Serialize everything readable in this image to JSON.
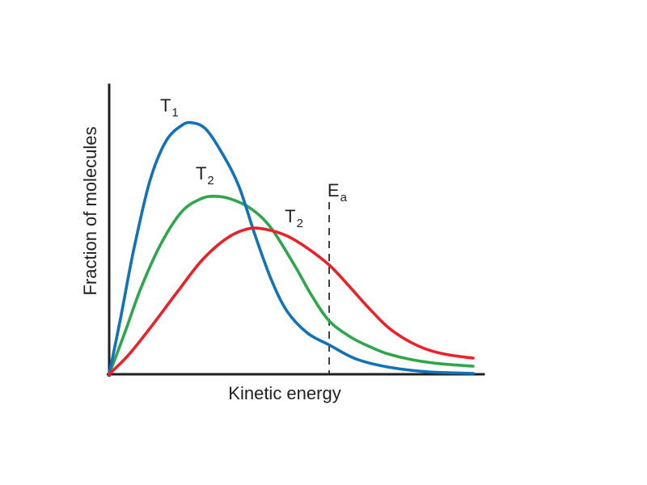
{
  "chart_data": {
    "type": "line",
    "title": "",
    "xlabel": "Kinetic energy",
    "ylabel": "Fraction of molecules",
    "x_axis": {
      "tick_labels": []
    },
    "y_axis": {
      "tick_labels": []
    },
    "xlim": [
      0,
      1
    ],
    "ylim": [
      0,
      1
    ],
    "grid": false,
    "legend": "inline-curve-labels",
    "background": "#FFFFFF",
    "axis_color": "#231F20",
    "series": [
      {
        "name": "T1-blue",
        "label": "T",
        "sub": "1",
        "color": "#1072B8",
        "label_anchor": [
          0.136,
          0.908
        ],
        "points": [
          [
            0,
            0
          ],
          [
            0.032,
            0.204
          ],
          [
            0.065,
            0.427
          ],
          [
            0.108,
            0.665
          ],
          [
            0.151,
            0.804
          ],
          [
            0.194,
            0.86
          ],
          [
            0.222,
            0.869
          ],
          [
            0.259,
            0.846
          ],
          [
            0.302,
            0.763
          ],
          [
            0.346,
            0.651
          ],
          [
            0.389,
            0.483
          ],
          [
            0.432,
            0.33
          ],
          [
            0.475,
            0.218
          ],
          [
            0.529,
            0.143
          ],
          [
            0.588,
            0.101
          ],
          [
            0.659,
            0.053
          ],
          [
            0.745,
            0.025
          ],
          [
            0.853,
            0.008
          ],
          [
            0.972,
            0.003
          ]
        ]
      },
      {
        "name": "T2-green",
        "label": "T",
        "sub": "2",
        "color": "#2EA64C",
        "label_anchor": [
          0.231,
          0.673
        ],
        "points": [
          [
            0,
            0
          ],
          [
            0.043,
            0.148
          ],
          [
            0.086,
            0.302
          ],
          [
            0.14,
            0.455
          ],
          [
            0.194,
            0.562
          ],
          [
            0.244,
            0.606
          ],
          [
            0.281,
            0.615
          ],
          [
            0.324,
            0.606
          ],
          [
            0.378,
            0.573
          ],
          [
            0.432,
            0.506
          ],
          [
            0.497,
            0.372
          ],
          [
            0.54,
            0.274
          ],
          [
            0.588,
            0.184
          ],
          [
            0.648,
            0.126
          ],
          [
            0.702,
            0.092
          ],
          [
            0.745,
            0.07
          ],
          [
            0.81,
            0.05
          ],
          [
            0.886,
            0.036
          ],
          [
            0.972,
            0.028
          ]
        ]
      },
      {
        "name": "T2-red",
        "label": "T",
        "sub": "2",
        "color": "#EC2127",
        "label_anchor": [
          0.469,
          0.525
        ],
        "points": [
          [
            0,
            0
          ],
          [
            0.054,
            0.07
          ],
          [
            0.119,
            0.176
          ],
          [
            0.184,
            0.288
          ],
          [
            0.248,
            0.394
          ],
          [
            0.313,
            0.469
          ],
          [
            0.372,
            0.503
          ],
          [
            0.421,
            0.5
          ],
          [
            0.475,
            0.478
          ],
          [
            0.529,
            0.436
          ],
          [
            0.588,
            0.377
          ],
          [
            0.637,
            0.31
          ],
          [
            0.691,
            0.232
          ],
          [
            0.745,
            0.162
          ],
          [
            0.799,
            0.115
          ],
          [
            0.853,
            0.084
          ],
          [
            0.907,
            0.067
          ],
          [
            0.972,
            0.056
          ]
        ]
      }
    ],
    "annotations": [
      {
        "name": "activation-energy",
        "type": "dashed-vertical-line",
        "label": "E",
        "sub": "a",
        "x": 0.5875,
        "y_top": 0.595,
        "label_anchor": [
          0.583,
          0.614
        ],
        "color": "#231F20"
      }
    ]
  }
}
